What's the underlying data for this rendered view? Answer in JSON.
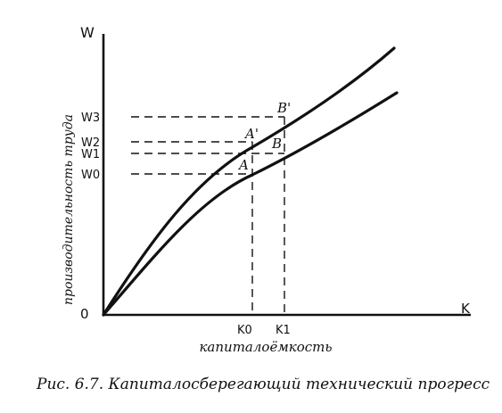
{
  "axes": {
    "y_letter": "W",
    "x_letter": "K",
    "origin": "0",
    "y_title": "производительность труда",
    "x_title": "капиталоёмкость"
  },
  "y_levels": [
    "W3",
    "W2",
    "W1",
    "W0"
  ],
  "x_levels": [
    "K0",
    "K1"
  ],
  "points": [
    "A",
    "A'",
    "B",
    "B'"
  ],
  "caption": "Рис. 6.7. Капиталосберегающий технический прогресс"
}
